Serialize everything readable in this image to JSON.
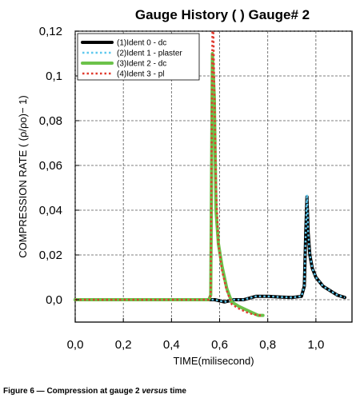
{
  "caption": {
    "before": "Figure 6 — Compression at gauge 2 ",
    "italic": "versus",
    "after": " time"
  },
  "chart_data": {
    "type": "line",
    "title": "Gauge History ( ) Gauge#  2",
    "xlabel": "TIME(milisecond)",
    "ylabel": "COMPRESSION RATE ( (ρ/ρo)− 1)",
    "xlim": [
      0.0,
      1.15
    ],
    "ylim": [
      -0.01,
      0.12
    ],
    "xticks": [
      0.0,
      0.2,
      0.4,
      0.6,
      0.8,
      1.0
    ],
    "xtick_labels": [
      "0,0",
      "0,2",
      "0,4",
      "0,6",
      "0,8",
      "1,0"
    ],
    "yticks": [
      0.0,
      0.02,
      0.04,
      0.06,
      0.08,
      0.1,
      0.12
    ],
    "ytick_labels": [
      "0,0",
      "0,02",
      "0,04",
      "0,06",
      "0,08",
      "0,1",
      "0,12"
    ],
    "grid": true,
    "legend_position": "top-left",
    "series": [
      {
        "name": "(1)Ident 0 - dc",
        "color": "#000000",
        "style": "solid-thick",
        "x": [
          0.0,
          0.56,
          0.58,
          0.62,
          0.66,
          0.7,
          0.75,
          0.8,
          0.85,
          0.9,
          0.94,
          0.952,
          0.958,
          0.963,
          0.968,
          0.975,
          0.985,
          1.0,
          1.03,
          1.06,
          1.09,
          1.12
        ],
        "y": [
          0.0,
          0.0,
          0.0,
          -0.001,
          0.0,
          0.0,
          0.0015,
          0.0015,
          0.0012,
          0.001,
          0.0015,
          0.006,
          0.03,
          0.046,
          0.03,
          0.02,
          0.014,
          0.01,
          0.006,
          0.004,
          0.002,
          0.001
        ]
      },
      {
        "name": "(2)Ident 1 - plaster",
        "color": "#5ec8ee",
        "style": "dotted",
        "x": [
          0.0,
          0.56,
          0.58,
          0.62,
          0.66,
          0.7,
          0.75,
          0.8,
          0.85,
          0.9,
          0.94,
          0.952,
          0.958,
          0.963,
          0.968,
          0.975,
          0.985,
          1.0,
          1.03,
          1.06,
          1.09,
          1.12
        ],
        "y": [
          0.0,
          0.0,
          0.0,
          -0.001,
          0.0,
          0.0,
          0.0015,
          0.0015,
          0.0012,
          0.001,
          0.0015,
          0.006,
          0.03,
          0.047,
          0.03,
          0.02,
          0.014,
          0.01,
          0.006,
          0.004,
          0.002,
          0.001
        ]
      },
      {
        "name": "(3)Ident 2 - dc",
        "color": "#6cc24a",
        "style": "solid-thick",
        "x": [
          0.0,
          0.555,
          0.563,
          0.57,
          0.578,
          0.585,
          0.595,
          0.61,
          0.63,
          0.65,
          0.68,
          0.72,
          0.76,
          0.78
        ],
        "y": [
          0.0,
          0.0,
          0.002,
          0.11,
          0.09,
          0.04,
          0.025,
          0.015,
          0.005,
          -0.001,
          -0.003,
          -0.005,
          -0.007,
          -0.007
        ]
      },
      {
        "name": "(4)Ident 3 - pl",
        "color": "#e03a2e",
        "style": "dotted",
        "x": [
          0.0,
          0.555,
          0.563,
          0.57,
          0.574,
          0.585,
          0.595,
          0.61,
          0.63,
          0.65,
          0.68,
          0.72,
          0.76,
          0.78
        ],
        "y": [
          0.0,
          0.0,
          0.002,
          0.12,
          0.12,
          0.05,
          0.025,
          0.013,
          0.004,
          -0.002,
          -0.004,
          -0.006,
          -0.007,
          -0.007
        ]
      }
    ]
  }
}
